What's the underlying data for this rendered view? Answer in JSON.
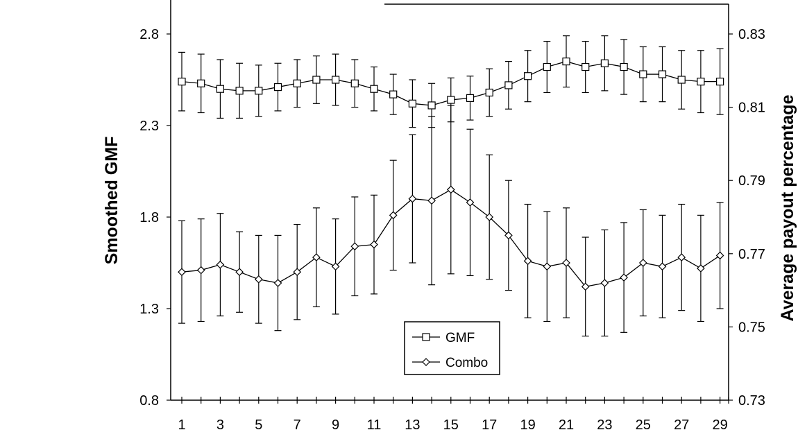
{
  "chart_data": {
    "type": "line",
    "x": [
      1,
      2,
      3,
      4,
      5,
      6,
      7,
      8,
      9,
      10,
      11,
      12,
      13,
      14,
      15,
      16,
      17,
      18,
      19,
      20,
      21,
      22,
      23,
      24,
      25,
      26,
      27,
      28,
      29
    ],
    "x_tick_labels": [
      "1",
      "3",
      "5",
      "7",
      "9",
      "11",
      "13",
      "15",
      "17",
      "19",
      "21",
      "23",
      "25",
      "27",
      "29"
    ],
    "ylabel": "Smoothed GMF",
    "y2label": "Average payout percentage",
    "ylim": [
      0.8,
      2.8
    ],
    "y_ticks": [
      "0.8",
      "1.3",
      "1.8",
      "2.3",
      "2.8"
    ],
    "y2lim": [
      0.73,
      0.83
    ],
    "y2_ticks": [
      "0.73",
      "0.75",
      "0.77",
      "0.79",
      "0.81",
      "0.83"
    ],
    "grid": false,
    "legend_position": "bottom-center",
    "series": [
      {
        "name": "GMF",
        "axis": "left",
        "marker": "square",
        "values": [
          2.54,
          2.53,
          2.5,
          2.49,
          2.49,
          2.51,
          2.53,
          2.55,
          2.55,
          2.53,
          2.5,
          2.47,
          2.42,
          2.41,
          2.44,
          2.45,
          2.48,
          2.52,
          2.57,
          2.62,
          2.65,
          2.62,
          2.64,
          2.62,
          2.58,
          2.58,
          2.55,
          2.54,
          2.54
        ],
        "error": [
          0.16,
          0.16,
          0.16,
          0.15,
          0.14,
          0.13,
          0.13,
          0.13,
          0.14,
          0.13,
          0.12,
          0.11,
          0.13,
          0.12,
          0.12,
          0.12,
          0.13,
          0.13,
          0.14,
          0.14,
          0.14,
          0.14,
          0.15,
          0.15,
          0.15,
          0.15,
          0.16,
          0.17,
          0.18
        ]
      },
      {
        "name": "Combo",
        "axis": "left",
        "marker": "diamond",
        "values": [
          1.5,
          1.51,
          1.54,
          1.5,
          1.46,
          1.44,
          1.5,
          1.58,
          1.53,
          1.64,
          1.65,
          1.81,
          1.9,
          1.89,
          1.95,
          1.88,
          1.8,
          1.7,
          1.56,
          1.53,
          1.55,
          1.42,
          1.44,
          1.47,
          1.55,
          1.53,
          1.58,
          1.52,
          1.59
        ],
        "error": [
          0.28,
          0.28,
          0.28,
          0.22,
          0.24,
          0.26,
          0.26,
          0.27,
          0.26,
          0.27,
          0.27,
          0.3,
          0.35,
          0.46,
          0.46,
          0.4,
          0.34,
          0.3,
          0.31,
          0.3,
          0.3,
          0.27,
          0.29,
          0.3,
          0.29,
          0.28,
          0.29,
          0.29,
          0.29
        ]
      }
    ]
  }
}
